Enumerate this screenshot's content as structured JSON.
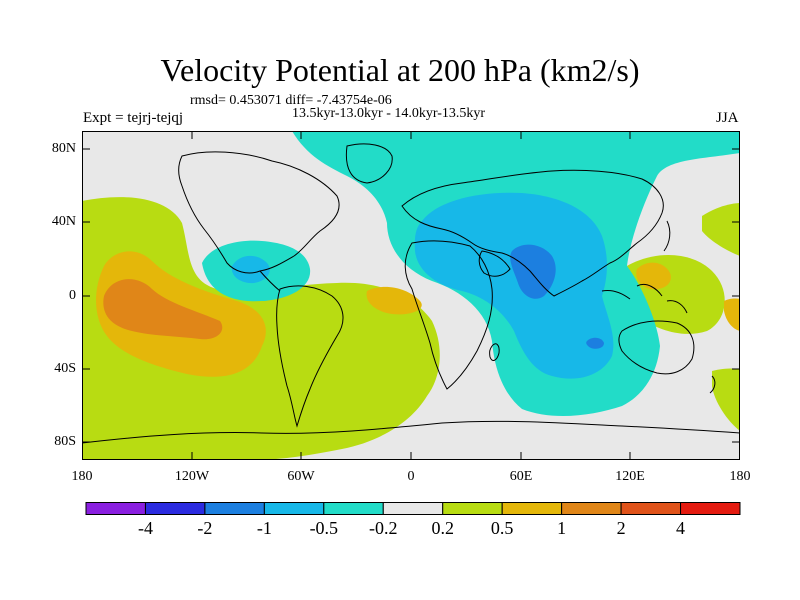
{
  "title": "Velocity Potential at 200 hPa (km2/s)",
  "stats_line": "rmsd= 0.453071 diff= -7.43754e-06",
  "period_line": "13.5kyr-13.0kyr - 14.0kyr-13.5kyr",
  "experiment": "Expt = tejrj-tejqj",
  "season": "JJA",
  "y_labels": [
    "80N",
    "40N",
    "0",
    "40S",
    "80S"
  ],
  "x_labels": [
    "180",
    "120W",
    "60W",
    "0",
    "60E",
    "120E",
    "180"
  ],
  "colorbar": {
    "labels": [
      "-4",
      "-2",
      "-1",
      "-0.5",
      "-0.2",
      "0.2",
      "0.5",
      "1",
      "2",
      "4"
    ],
    "colors": [
      "#8a1fe0",
      "#2b2be0",
      "#1c7fe0",
      "#17b8e8",
      "#22dcc8",
      "#e8e8e8",
      "#b8dc12",
      "#e4b70a",
      "#e08618",
      "#e0531a",
      "#e41b10"
    ]
  },
  "map_colors": {
    "neutral": "#e8e8e8",
    "neg_small": "#22dcc8",
    "neg_mid": "#17b8e8",
    "neg_strong": "#1c7fe0",
    "pos_small": "#b8dc12",
    "pos_mid": "#e4b70a",
    "pos_strong": "#e08618"
  }
}
